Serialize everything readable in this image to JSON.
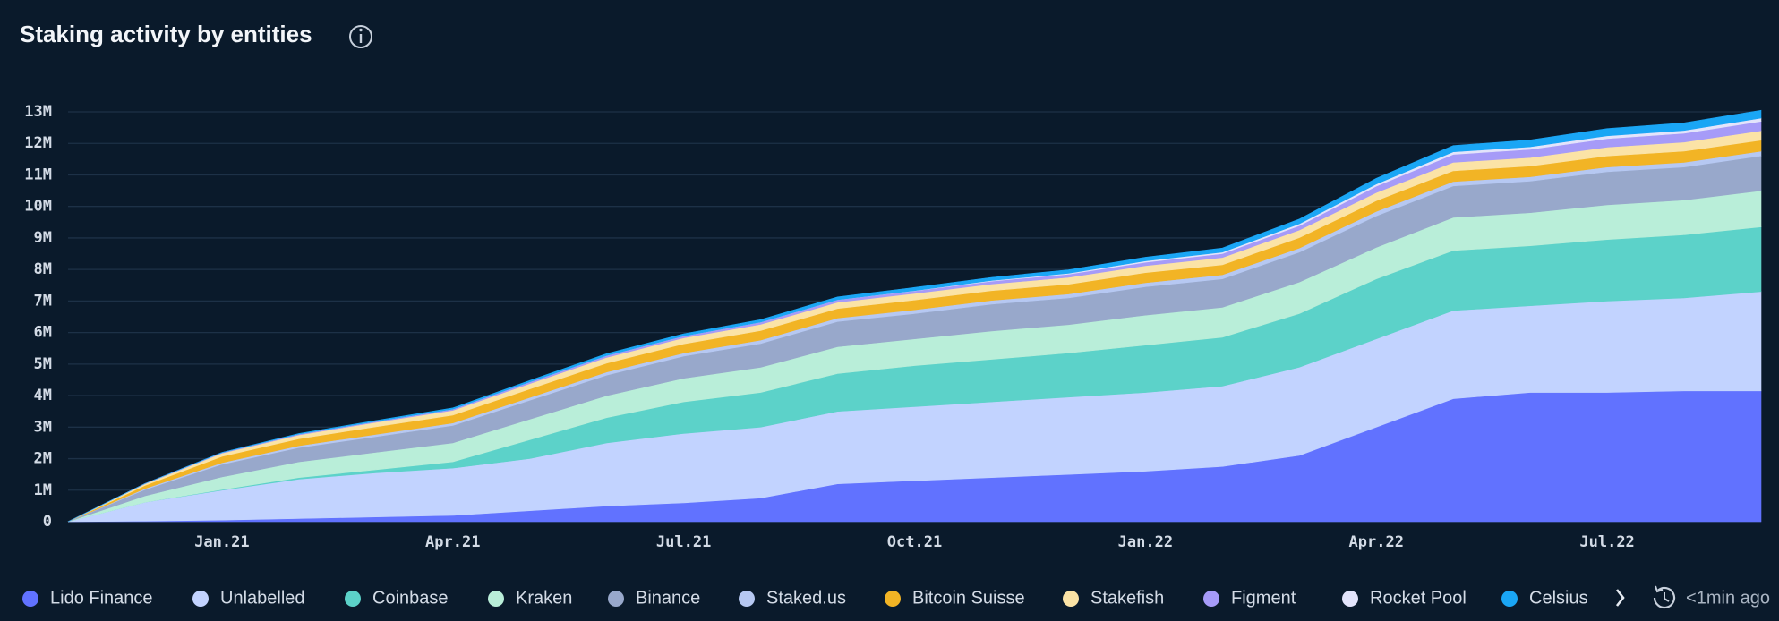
{
  "chart_data": {
    "type": "stacked_area",
    "title": "Staking activity by entities",
    "updated_label": "<1min ago",
    "categories": [
      null,
      null,
      "Jan.21",
      null,
      null,
      "Apr.21",
      null,
      null,
      "Jul.21",
      null,
      null,
      "Oct.21",
      null,
      null,
      "Jan.22",
      null,
      null,
      "Apr.22",
      null,
      null,
      "Jul.22",
      null,
      null
    ],
    "ylim": [
      0,
      13600000
    ],
    "yticks": [
      {
        "value": 0,
        "label": "0"
      },
      {
        "value": 1000000,
        "label": "1M"
      },
      {
        "value": 2000000,
        "label": "2M"
      },
      {
        "value": 3000000,
        "label": "3M"
      },
      {
        "value": 4000000,
        "label": "4M"
      },
      {
        "value": 5000000,
        "label": "5M"
      },
      {
        "value": 6000000,
        "label": "6M"
      },
      {
        "value": 7000000,
        "label": "7M"
      },
      {
        "value": 8000000,
        "label": "8M"
      },
      {
        "value": 9000000,
        "label": "9M"
      },
      {
        "value": 10000000,
        "label": "10M"
      },
      {
        "value": 11000000,
        "label": "11M"
      },
      {
        "value": 12000000,
        "label": "12M"
      },
      {
        "value": 13000000,
        "label": "13M"
      }
    ],
    "grid": true,
    "series": [
      {
        "name": "Lido Finance",
        "color": "#6172ff",
        "values": [
          0,
          20000,
          50000,
          100000,
          150000,
          200000,
          350000,
          500000,
          600000,
          750000,
          1200000,
          1300000,
          1400000,
          1500000,
          1600000,
          1750000,
          2100000,
          3000000,
          3900000,
          4100000,
          4100000,
          4150000,
          4150000
        ]
      },
      {
        "name": "Unlabelled",
        "color": "#c2d3ff",
        "values": [
          0,
          600000,
          950000,
          1250000,
          1400000,
          1500000,
          1650000,
          2000000,
          2200000,
          2250000,
          2300000,
          2350000,
          2400000,
          2450000,
          2500000,
          2550000,
          2800000,
          2800000,
          2800000,
          2750000,
          2900000,
          2950000,
          3150000
        ]
      },
      {
        "name": "Coinbase",
        "color": "#5cd2c9",
        "values": [
          0,
          0,
          20000,
          50000,
          100000,
          200000,
          600000,
          800000,
          1000000,
          1100000,
          1200000,
          1300000,
          1350000,
          1400000,
          1500000,
          1550000,
          1700000,
          1900000,
          1900000,
          1900000,
          1950000,
          2000000,
          2050000
        ]
      },
      {
        "name": "Kraken",
        "color": "#b9eed9",
        "values": [
          0,
          200000,
          400000,
          500000,
          550000,
          600000,
          650000,
          700000,
          750000,
          800000,
          850000,
          850000,
          900000,
          900000,
          950000,
          950000,
          1000000,
          1000000,
          1050000,
          1050000,
          1100000,
          1100000,
          1150000
        ]
      },
      {
        "name": "Binance",
        "color": "#98a8cb",
        "values": [
          0,
          200000,
          400000,
          450000,
          500000,
          550000,
          600000,
          650000,
          700000,
          750000,
          800000,
          800000,
          850000,
          850000,
          900000,
          900000,
          950000,
          1000000,
          1000000,
          1000000,
          1050000,
          1050000,
          1100000
        ]
      },
      {
        "name": "Staked.us",
        "color": "#b6c8f2",
        "values": [
          0,
          30000,
          50000,
          60000,
          70000,
          80000,
          90000,
          100000,
          100000,
          110000,
          110000,
          120000,
          120000,
          120000,
          130000,
          130000,
          130000,
          140000,
          140000,
          140000,
          150000,
          150000,
          150000
        ]
      },
      {
        "name": "Bitcoin Suisse",
        "color": "#f2b425",
        "values": [
          0,
          100000,
          200000,
          220000,
          240000,
          250000,
          270000,
          280000,
          290000,
          300000,
          300000,
          310000,
          310000,
          310000,
          320000,
          320000,
          330000,
          340000,
          340000,
          340000,
          350000,
          350000,
          350000
        ]
      },
      {
        "name": "Stakefish",
        "color": "#fbe3a6",
        "values": [
          0,
          50000,
          100000,
          120000,
          140000,
          150000,
          170000,
          180000,
          190000,
          200000,
          200000,
          210000,
          210000,
          220000,
          220000,
          230000,
          240000,
          260000,
          270000,
          270000,
          280000,
          290000,
          300000
        ]
      },
      {
        "name": "Figment",
        "color": "#a69bf8",
        "values": [
          0,
          10000,
          20000,
          30000,
          30000,
          40000,
          50000,
          60000,
          60000,
          70000,
          80000,
          80000,
          90000,
          100000,
          110000,
          120000,
          140000,
          200000,
          250000,
          260000,
          270000,
          280000,
          300000
        ]
      },
      {
        "name": "Rocket Pool",
        "color": "#e3e4fb",
        "values": [
          0,
          0,
          0,
          0,
          0,
          0,
          0,
          0,
          0,
          0,
          0,
          10000,
          20000,
          30000,
          40000,
          50000,
          60000,
          70000,
          80000,
          80000,
          90000,
          90000,
          100000
        ]
      },
      {
        "name": "Celsius",
        "color": "#1aa6f5",
        "values": [
          0,
          0,
          10000,
          20000,
          30000,
          40000,
          50000,
          60000,
          70000,
          80000,
          90000,
          100000,
          100000,
          110000,
          120000,
          130000,
          150000,
          180000,
          200000,
          220000,
          230000,
          240000,
          250000
        ]
      }
    ]
  }
}
